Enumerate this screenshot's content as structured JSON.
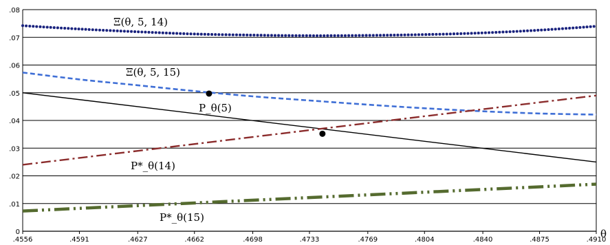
{
  "chart_data": {
    "type": "line",
    "x_ticks": [
      ".4556",
      ".4591",
      ".4627",
      ".4662",
      ".4698",
      ".4733",
      ".4769",
      ".4804",
      ".4840",
      ".4875",
      ".4910"
    ],
    "xlim": [
      0.4556,
      0.491
    ],
    "y_ticks": [
      "0",
      ".01",
      ".02",
      ".03",
      ".04",
      ".05",
      ".06",
      ".07",
      ".08"
    ],
    "ylim": [
      0,
      0.08
    ],
    "xlabel": "θ",
    "grid": "horizontal",
    "series": [
      {
        "label": "Ξ(θ, 5, 14)",
        "color": "#1a237e",
        "style": "dotted",
        "x": [
          0.4556,
          0.4591,
          0.4627,
          0.4662,
          0.4698,
          0.4733,
          0.4769,
          0.4804,
          0.484,
          0.4875,
          0.491
        ],
        "y": [
          0.0742,
          0.073,
          0.072,
          0.0712,
          0.0708,
          0.0706,
          0.0707,
          0.071,
          0.0716,
          0.0726,
          0.074
        ]
      },
      {
        "label": "Ξ(θ, 5, 15)",
        "color": "#3f6fd6",
        "style": "dashed",
        "x": [
          0.4556,
          0.4591,
          0.4627,
          0.4662,
          0.4698,
          0.4733,
          0.4769,
          0.4804,
          0.484,
          0.4875,
          0.491
        ],
        "y": [
          0.0573,
          0.0548,
          0.0527,
          0.0506,
          0.0487,
          0.0472,
          0.0457,
          0.0444,
          0.0433,
          0.0425,
          0.0421
        ]
      },
      {
        "label": "P_θ(5)",
        "color": "#000000",
        "style": "solid",
        "x": [
          0.4556,
          0.491
        ],
        "y": [
          0.05,
          0.025
        ]
      },
      {
        "label": "P*_θ(14)",
        "color": "#8b2c2c",
        "style": "dashdot",
        "x": [
          0.4556,
          0.491
        ],
        "y": [
          0.024,
          0.049
        ]
      },
      {
        "label": "P*_θ(15)",
        "color": "#556b2f",
        "style": "longdash-dot",
        "x": [
          0.4556,
          0.491
        ],
        "y": [
          0.0073,
          0.017
        ]
      }
    ],
    "points": [
      {
        "x": 0.4671,
        "y": 0.0497
      },
      {
        "x": 0.4741,
        "y": 0.0352
      }
    ]
  }
}
